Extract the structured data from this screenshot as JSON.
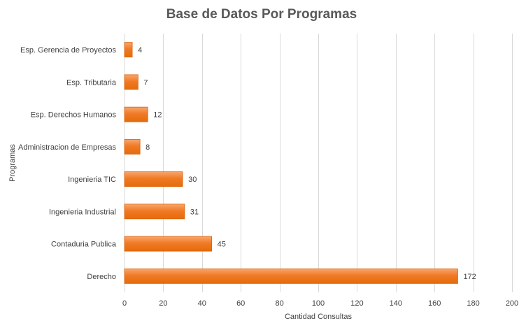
{
  "chart_data": {
    "type": "bar",
    "orientation": "horizontal",
    "title": "Base de Datos Por Programas",
    "xlabel": "Cantidad Consultas",
    "ylabel": "Programas",
    "categories": [
      "Esp. Gerencia de Proyectos",
      "Esp. Tributaria",
      "Esp. Derechos Humanos",
      "Administracion de Empresas",
      "Ingenieria TIC",
      "Ingenieria Industrial",
      "Contaduria Publica",
      "Derecho"
    ],
    "values": [
      4,
      7,
      12,
      8,
      30,
      31,
      45,
      172
    ],
    "xlim": [
      0,
      200
    ],
    "xticks": [
      0,
      20,
      40,
      60,
      80,
      100,
      120,
      140,
      160,
      180,
      200
    ],
    "grid": true,
    "legend": false,
    "data_labels": true,
    "colors": {
      "bar_fill_light": "#F79646",
      "bar_fill_dark": "#E46C0A",
      "bar_stroke": "#D9620A",
      "grid": "#D9D9D9",
      "title": "#595959",
      "text": "#404040"
    }
  }
}
